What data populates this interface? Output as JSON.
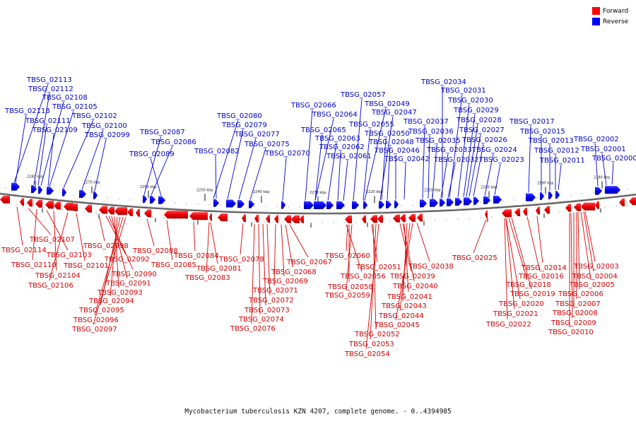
{
  "legend": {
    "forward": "Forward",
    "reverse": "Reverse",
    "forward_color": "#ff0000",
    "reverse_color": "#0000ff"
  },
  "caption": "Mycobacterium tuberculosis KZN 4207, complete genome. - 0..4394985",
  "ticks": [
    "2280 kbp",
    "2270 kbp",
    "2260 kbp",
    "2250 kbp",
    "2240 kbp",
    "2230 kbp",
    "2220 kbp",
    "2210 kbp",
    "2200 kbp",
    "2190 kbp",
    "2180 kbp"
  ],
  "reverse_genes": [
    "TBSG_02113",
    "TBSG_02112",
    "TBSG_02108",
    "TBSG_02105",
    "TBSG_02118",
    "TBSG_02102",
    "TBSG_02111",
    "TBSG_02100",
    "TBSG_02109",
    "TBSG_02099",
    "TBSG_02087",
    "TBSG_02086",
    "TBSG_02089",
    "TBSG_02080",
    "TBSG_02079",
    "TBSG_02077",
    "TBSG_02075",
    "TBSG_02082",
    "TBSG_02070",
    "TBSG_02066",
    "TBSG_02064",
    "TBSG_02065",
    "TBSG_02063",
    "TBSG_02062",
    "TBSG_02061",
    "TBSG_02057",
    "TBSG_02049",
    "TBSG_02047",
    "TBSG_02055",
    "TBSG_02050",
    "TBSG_02048",
    "TBSG_02046",
    "TBSG_02042",
    "TBSG_02037",
    "TBSG_02036",
    "TBSG_02035",
    "TBSG_02033",
    "TBSG_02032",
    "TBSG_02034",
    "TBSG_02031",
    "TBSG_02030",
    "TBSG_02029",
    "TBSG_02028",
    "TBSG_02027",
    "TBSG_02026",
    "TBSG_02024",
    "TBSG_02023",
    "TBSG_02017",
    "TBSG_02015",
    "TBSG_02013",
    "TBSG_02012",
    "TBSG_02011",
    "TBSG_02002",
    "TBSG_02001",
    "TBSG_02000"
  ],
  "forward_genes": [
    "TBSG_02107",
    "TBSG_02114",
    "TBSG_02103",
    "TBSG_02110",
    "TBSG_02101",
    "TBSG_02104",
    "TBSG_02106",
    "TBSG_02098",
    "TBSG_02092",
    "TBSG_02090",
    "TBSG_02091",
    "TBSG_02093",
    "TBSG_02094",
    "TBSG_02095",
    "TBSG_02096",
    "TBSG_02097",
    "TBSG_02088",
    "TBSG_02085",
    "TBSG_02084",
    "TBSG_02081",
    "TBSG_02083",
    "TBSG_02078",
    "TBSG_02067",
    "TBSG_02068",
    "TBSG_02069",
    "TBSG_02071",
    "TBSG_02072",
    "TBSG_02073",
    "TBSG_02074",
    "TBSG_02076",
    "TBSG_02060",
    "TBSG_02056",
    "TBSG_02058",
    "TBSG_02059",
    "TBSG_02051",
    "TBSG_02052",
    "TBSG_02053",
    "TBSG_02054",
    "TBSG_02039",
    "TBSG_02040",
    "TBSG_02041",
    "TBSG_02043",
    "TBSG_02044",
    "TBSG_02045",
    "TBSG_02038",
    "TBSG_02025",
    "TBSG_02014",
    "TBSG_02018",
    "TBSG_02016",
    "TBSG_02019",
    "TBSG_02020",
    "TBSG_02021",
    "TBSG_02022",
    "TBSG_02003",
    "TBSG_02004",
    "TBSG_02005",
    "TBSG_02006",
    "TBSG_02007",
    "TBSG_02008",
    "TBSG_02009",
    "TBSG_02010"
  ]
}
